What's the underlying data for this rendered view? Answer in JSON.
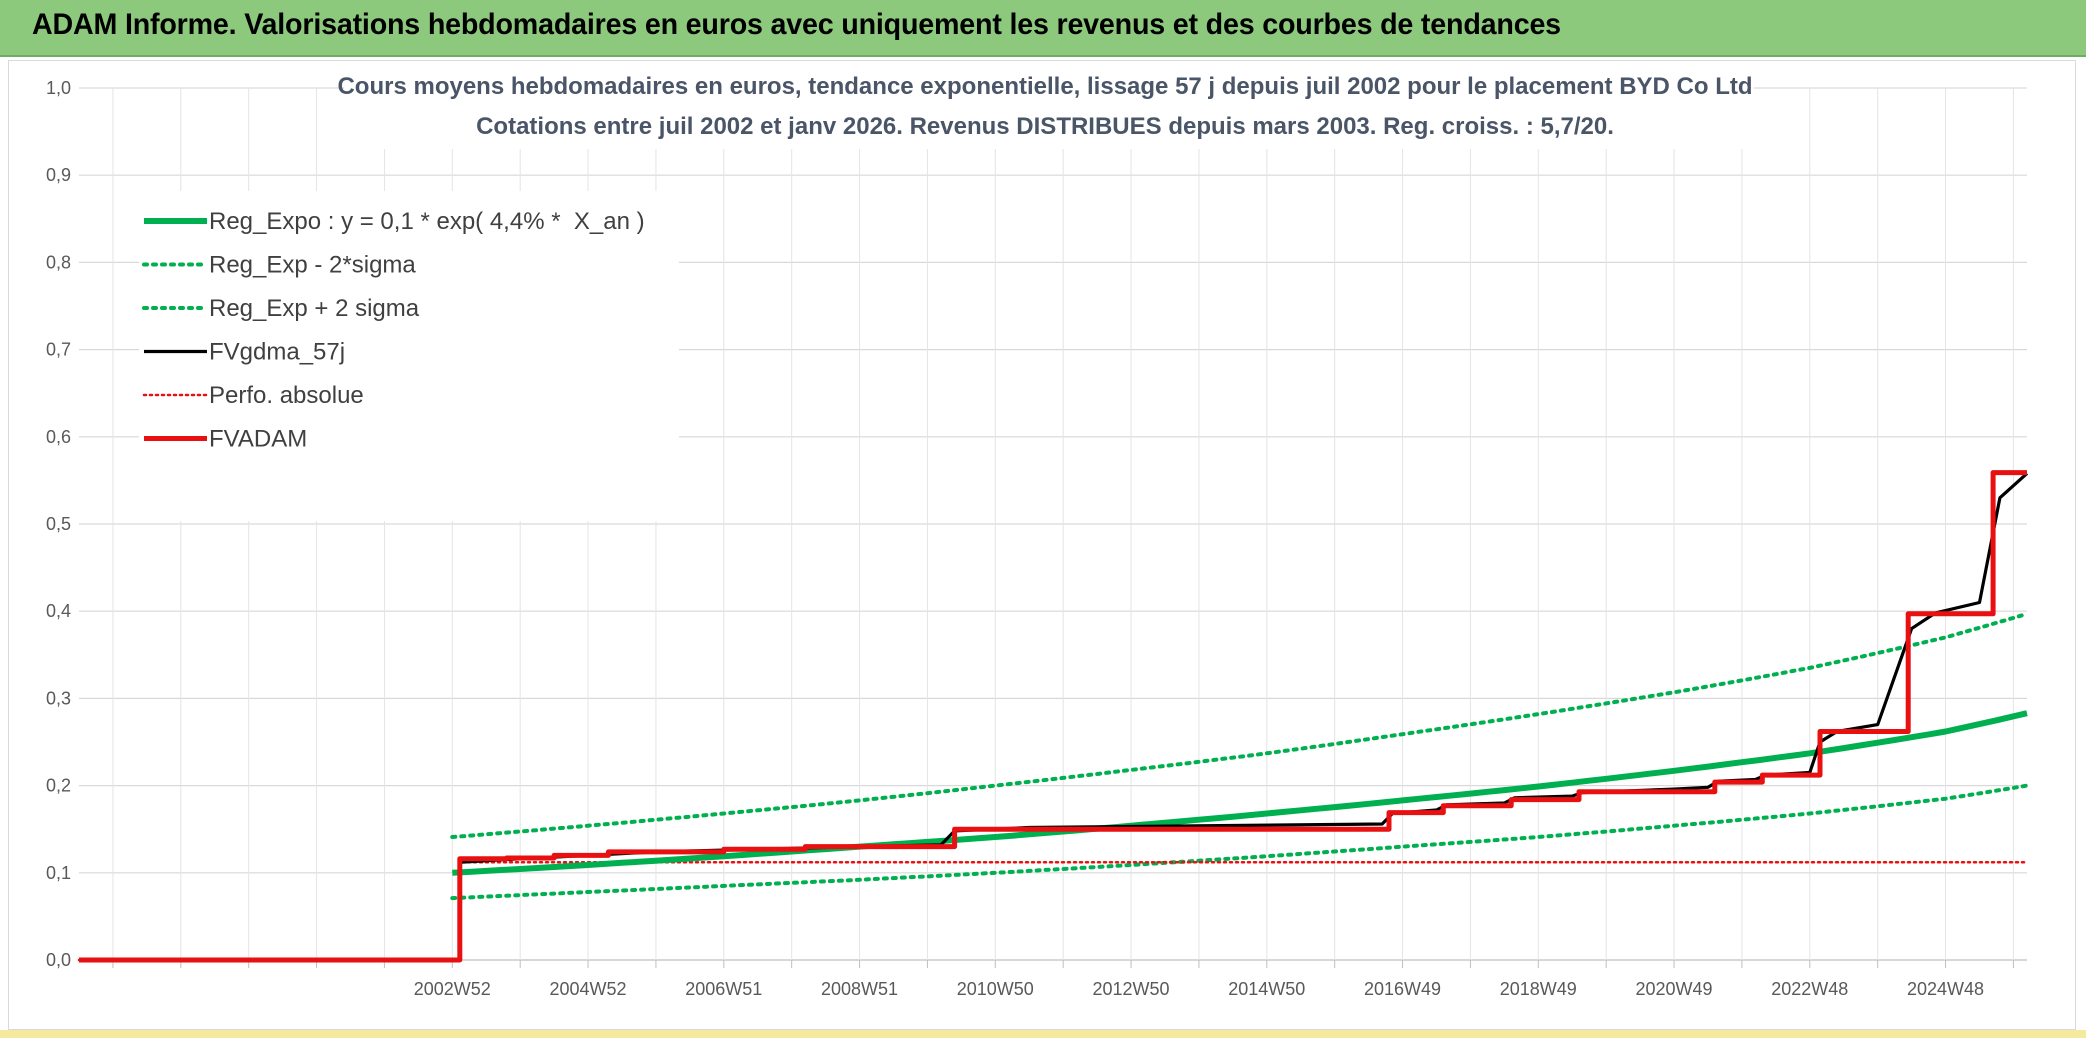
{
  "header": {
    "title": "ADAM Informe. Valorisations hebdomadaires en euros avec uniquement les revenus et des courbes de tendances"
  },
  "colors": {
    "header_bg": "#8cc97c",
    "reg_expo": "#00b050",
    "fvgdma": "#000000",
    "fvadam": "#e81010",
    "perfo": "#e81010"
  },
  "chart_data": {
    "type": "line",
    "title_lines": [
      "Cours moyens hebdomadaires en euros, tendance exponentielle, lissage 57 j depuis juil 2002 pour le placement BYD Co Ltd",
      "Cotations entre juil 2002 et janv 2026. Revenus DISTRIBUES depuis mars 2003. Reg. croiss. : 5,7/20."
    ],
    "xlabel": "",
    "ylabel": "",
    "ylim": [
      0,
      1.0
    ],
    "yticks": [
      "0,0",
      "0,1",
      "0,2",
      "0,3",
      "0,4",
      "0,5",
      "0,6",
      "0,7",
      "0,8",
      "0,9",
      "1,0"
    ],
    "xlim": [
      1997.5,
      2026.2
    ],
    "x_tick_labels": [
      "2002W52",
      "2004W52",
      "2006W51",
      "2008W51",
      "2010W50",
      "2012W50",
      "2014W50",
      "2016W49",
      "2018W49",
      "2020W49",
      "2022W48",
      "2024W48"
    ],
    "x_tick_positions": [
      2003.0,
      2005.0,
      2007.0,
      2009.0,
      2011.0,
      2013.0,
      2015.0,
      2017.0,
      2019.0,
      2021.0,
      2023.0,
      2025.0
    ],
    "grid": true,
    "legend_position": "top-left",
    "series": [
      {
        "name": "Reg_Expo : y = 0,1 * exp( 4,4% *  X_an )",
        "style": "solid-thick",
        "color": "#00b050",
        "x": [
          2003.0,
          2005.0,
          2007.0,
          2009.0,
          2011.0,
          2013.0,
          2015.0,
          2017.0,
          2019.0,
          2021.0,
          2023.0,
          2025.0,
          2026.2
        ],
        "values": [
          0.1,
          0.109,
          0.119,
          0.13,
          0.141,
          0.154,
          0.168,
          0.183,
          0.199,
          0.217,
          0.237,
          0.262,
          0.283
        ]
      },
      {
        "name": "Reg_Exp - 2*sigma",
        "style": "dotted",
        "color": "#00b050",
        "x": [
          2003.0,
          2005.0,
          2007.0,
          2009.0,
          2011.0,
          2013.0,
          2015.0,
          2017.0,
          2019.0,
          2021.0,
          2023.0,
          2025.0,
          2026.2
        ],
        "values": [
          0.071,
          0.078,
          0.085,
          0.092,
          0.1,
          0.109,
          0.119,
          0.13,
          0.141,
          0.154,
          0.168,
          0.185,
          0.2
        ]
      },
      {
        "name": "Reg_Exp + 2 sigma",
        "style": "dotted",
        "color": "#00b050",
        "x": [
          2003.0,
          2005.0,
          2007.0,
          2009.0,
          2011.0,
          2013.0,
          2015.0,
          2017.0,
          2019.0,
          2021.0,
          2023.0,
          2025.0,
          2026.2
        ],
        "values": [
          0.141,
          0.154,
          0.168,
          0.183,
          0.2,
          0.218,
          0.237,
          0.259,
          0.282,
          0.307,
          0.335,
          0.37,
          0.397
        ]
      },
      {
        "name": "FVgdma_57j",
        "style": "solid",
        "color": "#000000",
        "x": [
          1997.5,
          2003.1,
          2003.11,
          2004.0,
          2005.0,
          2006.0,
          2007.0,
          2008.0,
          2009.0,
          2010.2,
          2010.4,
          2011.5,
          2016.7,
          2016.85,
          2017.5,
          2017.65,
          2018.5,
          2018.65,
          2019.5,
          2019.65,
          2021.0,
          2021.5,
          2021.65,
          2022.2,
          2022.35,
          2023.0,
          2023.15,
          2023.4,
          2024.0,
          2024.5,
          2024.85,
          2025.5,
          2025.8,
          2026.2
        ],
        "values": [
          0.0,
          0.0,
          0.112,
          0.116,
          0.12,
          0.124,
          0.126,
          0.128,
          0.13,
          0.132,
          0.148,
          0.152,
          0.156,
          0.168,
          0.172,
          0.178,
          0.18,
          0.186,
          0.188,
          0.192,
          0.196,
          0.198,
          0.205,
          0.207,
          0.212,
          0.215,
          0.25,
          0.262,
          0.27,
          0.38,
          0.398,
          0.41,
          0.53,
          0.558
        ]
      },
      {
        "name": "Perfo. absolue",
        "style": "dotted",
        "color": "#e81010",
        "x": [
          1997.5,
          2003.1,
          2003.11,
          2026.2
        ],
        "values": [
          0.0,
          0.0,
          0.112,
          0.112
        ]
      },
      {
        "name": "FVADAM",
        "style": "solid-thick",
        "color": "#e81010",
        "x": [
          1997.5,
          2003.1,
          2003.11,
          2003.8,
          2004.5,
          2005.3,
          2007.0,
          2008.2,
          2010.4,
          2016.8,
          2017.6,
          2018.6,
          2019.6,
          2021.6,
          2022.3,
          2023.15,
          2024.45,
          2025.7,
          2026.2
        ],
        "values": [
          0.0,
          0.0,
          0.116,
          0.117,
          0.12,
          0.124,
          0.127,
          0.13,
          0.15,
          0.169,
          0.177,
          0.184,
          0.193,
          0.204,
          0.212,
          0.262,
          0.397,
          0.559,
          0.559
        ],
        "step": true
      }
    ]
  }
}
